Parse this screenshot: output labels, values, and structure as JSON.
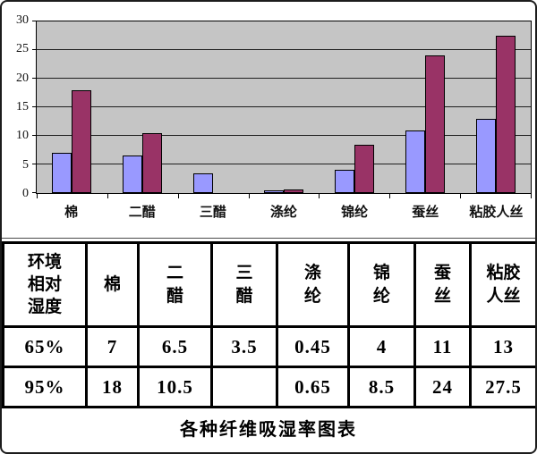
{
  "page": {
    "caption": "各种纤维吸湿率图表"
  },
  "chart_data": {
    "type": "bar",
    "title": "",
    "xlabel": "",
    "ylabel": "",
    "categories": [
      "棉",
      "二醋",
      "三醋",
      "涤纶",
      "锦纶",
      "蚕丝",
      "粘胶人丝"
    ],
    "series": [
      {
        "name": "65%",
        "color": "#9999FF",
        "values": [
          7,
          6.5,
          3.5,
          0.45,
          4,
          11,
          13
        ]
      },
      {
        "name": "95%",
        "color": "#993366",
        "values": [
          18,
          10.5,
          null,
          0.65,
          8.5,
          24,
          27.5
        ]
      }
    ],
    "ylim": [
      0,
      30
    ],
    "yticks": [
      0,
      5,
      10,
      15,
      20,
      25,
      30
    ],
    "grid": true,
    "legend_position": "none",
    "plot_background": "#C5C5C5"
  },
  "table": {
    "header": [
      "环境\n相对\n湿度",
      "棉",
      "二\n醋",
      "三\n醋",
      "涤\n纶",
      "锦\n纶",
      "蚕\n丝",
      "粘胶\n人丝"
    ],
    "rows": [
      [
        "65%",
        "7",
        "6.5",
        "3.5",
        "0.45",
        "4",
        "11",
        "13"
      ],
      [
        "95%",
        "18",
        "10.5",
        "",
        "0.65",
        "8.5",
        "24",
        "27.5"
      ]
    ]
  }
}
